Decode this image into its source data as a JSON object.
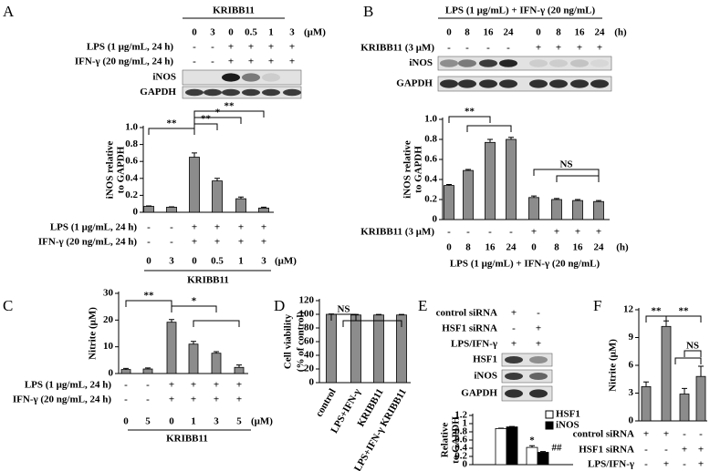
{
  "chart_data": [
    {
      "panel": "A",
      "type": "bar",
      "color": "#8c8c8c",
      "ylabel": [
        "iNOS relative",
        "to GAPDH"
      ],
      "values": [
        0.07,
        0.06,
        0.65,
        0.37,
        0.16,
        0.05
      ],
      "errors": [
        0.005,
        0.005,
        0.05,
        0.03,
        0.02,
        0.01
      ],
      "ylim": [
        0,
        1
      ],
      "yticks": [
        0,
        0.2,
        0.4,
        0.6,
        0.8,
        {
          "value": 1,
          "label": "1.0"
        }
      ],
      "conditions": [
        {
          "label": "LPS (1 μg/mL, 24 h)",
          "cells": [
            "-",
            "-",
            "+",
            "+",
            "+",
            "+"
          ]
        },
        {
          "label": "IFN-γ (20 ng/mL, 24 h)",
          "cells": [
            "-",
            "-",
            "+",
            "+",
            "+",
            "+"
          ]
        }
      ],
      "categories": [
        "0",
        "3",
        "0",
        "0.5",
        "1",
        "3"
      ],
      "unit": "(μM)",
      "group_label": "KRIBB11",
      "significance": [
        "**",
        "**",
        "*",
        "**"
      ],
      "blot": {
        "header": "KRIBB11",
        "categories": [
          "0",
          "3",
          "0",
          "0.5",
          "1",
          "3"
        ],
        "unit": "(μM)",
        "conditions": [
          {
            "label": "LPS (1 μg/mL, 24 h)",
            "cells": [
              "-",
              "-",
              "+",
              "+",
              "+",
              "+"
            ]
          },
          {
            "label": "IFN-γ (20 ng/mL, 24 h)",
            "cells": [
              "-",
              "-",
              "+",
              "+",
              "+",
              "+"
            ]
          }
        ],
        "bands": [
          "iNOS",
          "GAPDH"
        ]
      }
    },
    {
      "panel": "B",
      "type": "bar",
      "color": "#8c8c8c",
      "ylabel": [
        "iNOS relative",
        "to GAPDH"
      ],
      "values": [
        0.34,
        0.49,
        0.77,
        0.8,
        0.22,
        0.2,
        0.19,
        0.18
      ],
      "errors": [
        0.01,
        0.01,
        0.03,
        0.02,
        0.015,
        0.01,
        0.01,
        0.01
      ],
      "ylim": [
        0,
        1
      ],
      "yticks": [
        0,
        0.2,
        0.4,
        0.6,
        0.8,
        {
          "value": 1,
          "label": "1.0"
        }
      ],
      "conditions": [
        {
          "label": "KRIBB11 (3 μM)",
          "cells": [
            "-",
            "-",
            "-",
            "-",
            "+",
            "+",
            "+",
            "+"
          ]
        }
      ],
      "categories": [
        "0",
        "8",
        "16",
        "24",
        "0",
        "8",
        "16",
        "24"
      ],
      "unit": "(h)",
      "group_label": "LPS (1 μg/mL) + IFN-γ (20 ng/mL)",
      "significance": [
        "**",
        "NS"
      ],
      "blot": {
        "header": "LPS (1 μg/mL) + IFN-γ (20 ng/mL)",
        "categories": [
          "0",
          "8",
          "16",
          "24",
          "0",
          "8",
          "16",
          "24"
        ],
        "unit": "(h)",
        "conditions": [
          {
            "label": "KRIBB11 (3 μM)",
            "cells": [
              "-",
              "-",
              "-",
              "-",
              "+",
              "+",
              "+",
              "+"
            ]
          }
        ],
        "bands": [
          "iNOS",
          "GAPDH"
        ]
      }
    },
    {
      "panel": "C",
      "type": "bar",
      "color": "#8c8c8c",
      "ylabel": [
        "Nitrite (μM)"
      ],
      "values": [
        1.5,
        1.7,
        19.2,
        11,
        7.6,
        2.3
      ],
      "errors": [
        0.4,
        0.4,
        1.0,
        1.0,
        0.6,
        0.9
      ],
      "ylim": [
        0,
        30
      ],
      "yticks": [
        0,
        10,
        20,
        30
      ],
      "conditions": [
        {
          "label": "LPS (1 μg/mL, 24 h)",
          "cells": [
            "-",
            "-",
            "+",
            "+",
            "+",
            "+"
          ]
        },
        {
          "label": "IFN-γ (20 ng/mL, 24 h)",
          "cells": [
            "-",
            "-",
            "+",
            "+",
            "+",
            "+"
          ]
        }
      ],
      "categories": [
        "0",
        "5",
        "0",
        "1",
        "3",
        "5"
      ],
      "unit": "(μM)",
      "group_label": "KRIBB11",
      "significance": [
        "**",
        "*"
      ]
    },
    {
      "panel": "D",
      "type": "bar",
      "color": "#8c8c8c",
      "ylabel": [
        "Cell viability",
        "(% of control)"
      ],
      "values": [
        100,
        99,
        99,
        99
      ],
      "errors": [
        0.5,
        0.8,
        0.8,
        0.8
      ],
      "ylim": [
        0,
        120
      ],
      "yticks": [
        0,
        20,
        40,
        60,
        80,
        100,
        120
      ],
      "categories": [
        "control",
        "LPS+IFN-γ",
        "KRIBB11",
        "LPS+IFN-γ KRIBB11"
      ],
      "significance": [
        "NS"
      ]
    },
    {
      "panel": "E",
      "type": "grouped-bar",
      "ylabel": [
        "Relative",
        "to GAPDH"
      ],
      "series": [
        {
          "name": "HSF1",
          "color": "#ffffff",
          "values": [
            0.88,
            0.42
          ],
          "errors": [
            0.01,
            0.04
          ]
        },
        {
          "name": "iNOS",
          "color": "#000000",
          "values": [
            0.92,
            0.3
          ],
          "errors": [
            0.01,
            0.02
          ]
        }
      ],
      "ylim": [
        0,
        1.2
      ],
      "yticks": [
        0,
        0.2,
        0.4,
        0.6,
        0.8,
        1,
        1.2
      ],
      "legend": "upper right",
      "conditions": [
        {
          "label": "control siRNA",
          "cells": [
            "+",
            "-"
          ]
        },
        {
          "label": "HSF1 siRNA",
          "cells": [
            "-",
            "+"
          ]
        },
        {
          "label": "LPS/IFN-γ",
          "cells": [
            "+",
            "+"
          ]
        }
      ],
      "annotations": [
        "*",
        "##"
      ],
      "blot": {
        "bands": [
          "HSF1",
          "iNOS",
          "GAPDH"
        ]
      }
    },
    {
      "panel": "F",
      "type": "bar",
      "color": "#8c8c8c",
      "ylabel": [
        "Nitrite (μM)"
      ],
      "values": [
        3.7,
        10.2,
        2.9,
        4.8
      ],
      "errors": [
        0.5,
        0.6,
        0.6,
        1.1
      ],
      "ylim": [
        0,
        12
      ],
      "yticks": [
        0,
        3,
        6,
        9,
        12
      ],
      "conditions": [
        {
          "label": "control siRNA",
          "cells": [
            "+",
            "+",
            "-",
            "-"
          ]
        },
        {
          "label": "HSF1 siRNA",
          "cells": [
            "-",
            "-",
            "+",
            "+"
          ]
        },
        {
          "label": "LPS/IFN-γ",
          "cells": [
            "-",
            "+",
            "-",
            "+"
          ]
        }
      ],
      "significance": [
        "**",
        "**",
        "NS"
      ]
    }
  ]
}
